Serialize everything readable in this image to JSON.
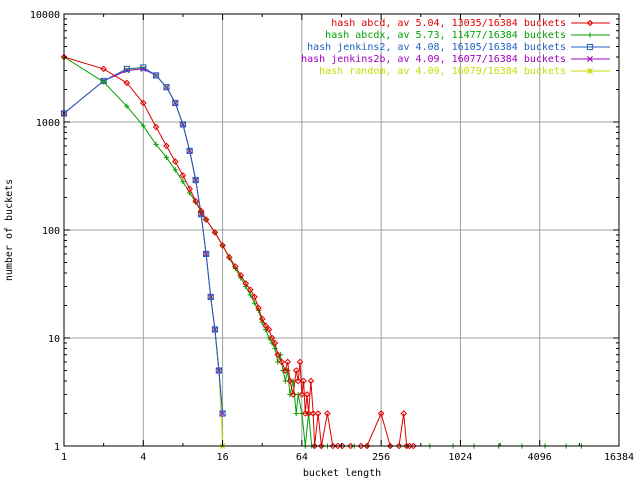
{
  "chart_data": {
    "type": "line",
    "title": "",
    "xlabel": "bucket length",
    "ylabel": "number of buckets",
    "x_scale": "log2",
    "y_scale": "log10",
    "xlim": [
      1,
      16384
    ],
    "ylim": [
      1,
      10000
    ],
    "x_ticks": [
      "1",
      "4",
      "16",
      "64",
      "256",
      "1024",
      "4096",
      "16384"
    ],
    "x_tick_values": [
      1,
      4,
      16,
      64,
      256,
      1024,
      4096,
      16384
    ],
    "y_ticks": [
      "1",
      "10",
      "100",
      "1000",
      "10000"
    ],
    "y_tick_values": [
      1,
      10,
      100,
      1000,
      10000
    ],
    "grid": true,
    "legend_position": "top-right",
    "series": [
      {
        "name": "hash abcd, av 5.04, 13035/16384 buckets",
        "color": "#e00000",
        "marker": "diamond",
        "points": [
          [
            1,
            4000
          ],
          [
            2,
            3100
          ],
          [
            3,
            2300
          ],
          [
            4,
            1500
          ],
          [
            5,
            900
          ],
          [
            6,
            600
          ],
          [
            7,
            430
          ],
          [
            8,
            320
          ],
          [
            9,
            240
          ],
          [
            10,
            185
          ],
          [
            11,
            150
          ],
          [
            12,
            125
          ],
          [
            14,
            95
          ],
          [
            16,
            72
          ],
          [
            18,
            56
          ],
          [
            20,
            46
          ],
          [
            22,
            38
          ],
          [
            24,
            32
          ],
          [
            26,
            28
          ],
          [
            28,
            24
          ],
          [
            30,
            19
          ],
          [
            32,
            15
          ],
          [
            34,
            13
          ],
          [
            36,
            12
          ],
          [
            38,
            10
          ],
          [
            40,
            9
          ],
          [
            42,
            7
          ],
          [
            45,
            6
          ],
          [
            48,
            5
          ],
          [
            50,
            6
          ],
          [
            52,
            4
          ],
          [
            55,
            3
          ],
          [
            58,
            5
          ],
          [
            60,
            4
          ],
          [
            62,
            6
          ],
          [
            64,
            3
          ],
          [
            66,
            4
          ],
          [
            68,
            2
          ],
          [
            70,
            3
          ],
          [
            72,
            2
          ],
          [
            75,
            4
          ],
          [
            78,
            2
          ],
          [
            80,
            1
          ],
          [
            85,
            2
          ],
          [
            90,
            1
          ],
          [
            100,
            2
          ],
          [
            110,
            1
          ],
          [
            120,
            1
          ],
          [
            130,
            1
          ],
          [
            150,
            1
          ],
          [
            180,
            1
          ],
          [
            200,
            1
          ],
          [
            256,
            2
          ],
          [
            300,
            1
          ],
          [
            350,
            1
          ],
          [
            380,
            2
          ],
          [
            400,
            1
          ],
          [
            420,
            1
          ],
          [
            450,
            1
          ]
        ]
      },
      {
        "name": "hash abcdx, av 5.73, 11477/16384 buckets",
        "color": "#00a000",
        "marker": "plus",
        "points": [
          [
            1,
            4000
          ],
          [
            2,
            2350
          ],
          [
            3,
            1400
          ],
          [
            4,
            920
          ],
          [
            5,
            620
          ],
          [
            6,
            470
          ],
          [
            7,
            360
          ],
          [
            8,
            280
          ],
          [
            9,
            220
          ],
          [
            10,
            180
          ],
          [
            11,
            150
          ],
          [
            12,
            125
          ],
          [
            14,
            95
          ],
          [
            16,
            72
          ],
          [
            18,
            55
          ],
          [
            20,
            44
          ],
          [
            22,
            36
          ],
          [
            24,
            30
          ],
          [
            26,
            25
          ],
          [
            28,
            21
          ],
          [
            30,
            18
          ],
          [
            32,
            14
          ],
          [
            34,
            12
          ],
          [
            36,
            10
          ],
          [
            38,
            9
          ],
          [
            40,
            8
          ],
          [
            42,
            6
          ],
          [
            44,
            7
          ],
          [
            46,
            5
          ],
          [
            48,
            4
          ],
          [
            50,
            5
          ],
          [
            52,
            3
          ],
          [
            55,
            4
          ],
          [
            58,
            2
          ],
          [
            60,
            3
          ],
          [
            64,
            2
          ],
          [
            68,
            1
          ],
          [
            72,
            2
          ],
          [
            76,
            1
          ],
          [
            80,
            1
          ],
          [
            90,
            1
          ],
          [
            100,
            1
          ],
          [
            128,
            1
          ],
          [
            160,
            1
          ],
          [
            200,
            1
          ],
          [
            300,
            1
          ],
          [
            400,
            1
          ],
          [
            600,
            1
          ],
          [
            900,
            1
          ],
          [
            1300,
            1
          ],
          [
            2000,
            1
          ],
          [
            3000,
            1
          ],
          [
            4500,
            1
          ],
          [
            6500,
            1
          ],
          [
            8500,
            1
          ]
        ]
      },
      {
        "name": "hash jenkins2, av 4.08, 16105/16384 buckets",
        "color": "#2060c0",
        "marker": "square",
        "points": [
          [
            1,
            1200
          ],
          [
            2,
            2400
          ],
          [
            3,
            3100
          ],
          [
            4,
            3200
          ],
          [
            5,
            2700
          ],
          [
            6,
            2100
          ],
          [
            7,
            1500
          ],
          [
            8,
            950
          ],
          [
            9,
            540
          ],
          [
            10,
            290
          ],
          [
            11,
            140
          ],
          [
            12,
            60
          ],
          [
            13,
            24
          ],
          [
            14,
            12
          ],
          [
            15,
            5
          ],
          [
            16,
            2
          ]
        ]
      },
      {
        "name": "hash jenkins2b, av 4.09, 16077/16384 buckets",
        "color": "#a000c0",
        "marker": "cross",
        "points": [
          [
            1,
            1200
          ],
          [
            2,
            2400
          ],
          [
            3,
            3000
          ],
          [
            4,
            3100
          ],
          [
            5,
            2700
          ],
          [
            6,
            2100
          ],
          [
            7,
            1500
          ],
          [
            8,
            950
          ],
          [
            9,
            540
          ],
          [
            10,
            290
          ],
          [
            11,
            140
          ],
          [
            12,
            60
          ],
          [
            13,
            24
          ],
          [
            14,
            12
          ],
          [
            15,
            5
          ],
          [
            16,
            2
          ]
        ]
      },
      {
        "name": "hash random, av 4.09, 16079/16384 buckets",
        "color": "#c8dc00",
        "marker": "star",
        "points": [
          [
            1,
            1200
          ],
          [
            2,
            2400
          ],
          [
            3,
            3050
          ],
          [
            4,
            3150
          ],
          [
            5,
            2700
          ],
          [
            6,
            2100
          ],
          [
            7,
            1500
          ],
          [
            8,
            950
          ],
          [
            9,
            540
          ],
          [
            10,
            290
          ],
          [
            11,
            140
          ],
          [
            12,
            60
          ],
          [
            13,
            24
          ],
          [
            14,
            12
          ],
          [
            15,
            5
          ],
          [
            16,
            1
          ]
        ]
      }
    ]
  }
}
